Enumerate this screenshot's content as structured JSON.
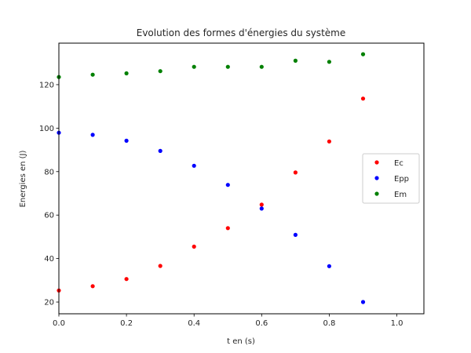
{
  "chart_data": {
    "type": "scatter",
    "title": "Evolution des formes d'énergies du système",
    "xlabel": "t en (s)",
    "ylabel": "Energies en (J)",
    "xlim": [
      0.0,
      1.08
    ],
    "ylim": [
      14.6,
      139.1
    ],
    "grid": false,
    "legend_position": "center right",
    "x_ticks": [
      0.0,
      0.2,
      0.4,
      0.6,
      0.8,
      1.0
    ],
    "x_tick_labels": [
      "0.0",
      "0.2",
      "0.4",
      "0.6",
      "0.8",
      "1.0"
    ],
    "y_ticks": [
      20,
      40,
      60,
      80,
      100,
      120
    ],
    "y_tick_labels": [
      "20",
      "40",
      "60",
      "80",
      "100",
      "120"
    ],
    "x": [
      0.0,
      0.1,
      0.2,
      0.3,
      0.4,
      0.5,
      0.6,
      0.7,
      0.8,
      0.9
    ],
    "series": [
      {
        "name": "Ec",
        "color": "#ff0000",
        "values": [
          25.3,
          27.3,
          30.6,
          36.6,
          45.5,
          54.0,
          64.8,
          79.6,
          93.9,
          113.6
        ]
      },
      {
        "name": "Epp",
        "color": "#0000ff",
        "values": [
          97.9,
          96.9,
          94.2,
          89.5,
          82.7,
          73.9,
          63.0,
          50.9,
          36.5,
          20.0
        ]
      },
      {
        "name": "Em",
        "color": "#008000",
        "values": [
          123.5,
          124.6,
          125.2,
          126.2,
          128.2,
          128.2,
          128.2,
          131.0,
          130.5,
          134.0
        ]
      }
    ]
  }
}
